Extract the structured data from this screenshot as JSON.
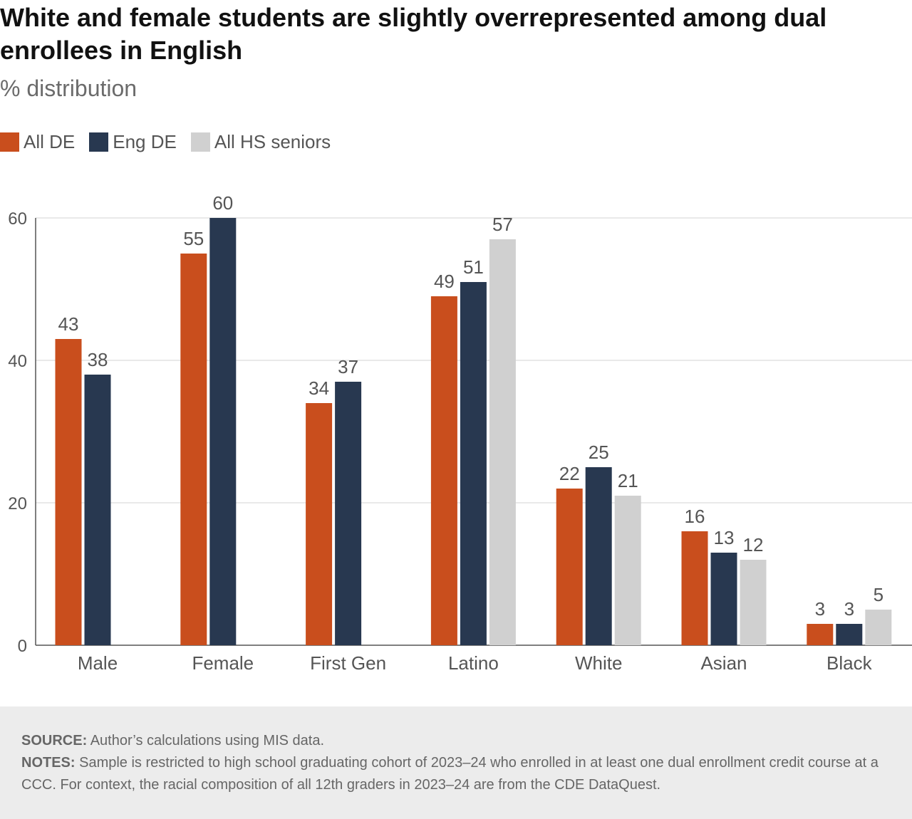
{
  "title": "White and female students are slightly overrepresented among dual enrollees in English",
  "subtitle": "% distribution",
  "colors": {
    "all_de": "#c94e1d",
    "eng_de": "#283850",
    "all_hs": "#d0d0d0"
  },
  "chart_data": {
    "type": "bar",
    "categories": [
      "Male",
      "Female",
      "First Gen",
      "Latino",
      "White",
      "Asian",
      "Black"
    ],
    "series": [
      {
        "name": "All DE",
        "color": "#c94e1d",
        "values": [
          43,
          55,
          34,
          49,
          22,
          16,
          3
        ]
      },
      {
        "name": "Eng DE",
        "color": "#283850",
        "values": [
          38,
          60,
          37,
          51,
          25,
          13,
          3
        ]
      },
      {
        "name": "All HS seniors",
        "color": "#d0d0d0",
        "values": [
          null,
          null,
          null,
          57,
          21,
          12,
          5
        ]
      }
    ],
    "yticks": [
      0,
      20,
      40,
      60
    ],
    "ylim": [
      0,
      60
    ],
    "grid": true,
    "legend": "top-left"
  },
  "footer": {
    "source_label": "SOURCE:",
    "source_text": " Author’s calculations using MIS data.",
    "notes_label": "NOTES:",
    "notes_text": " Sample is restricted to high school graduating cohort of 2023–24 who enrolled in at least one dual enrollment credit course at a CCC. For context, the racial composition of all 12th graders in 2023–24 are from the CDE DataQuest."
  }
}
